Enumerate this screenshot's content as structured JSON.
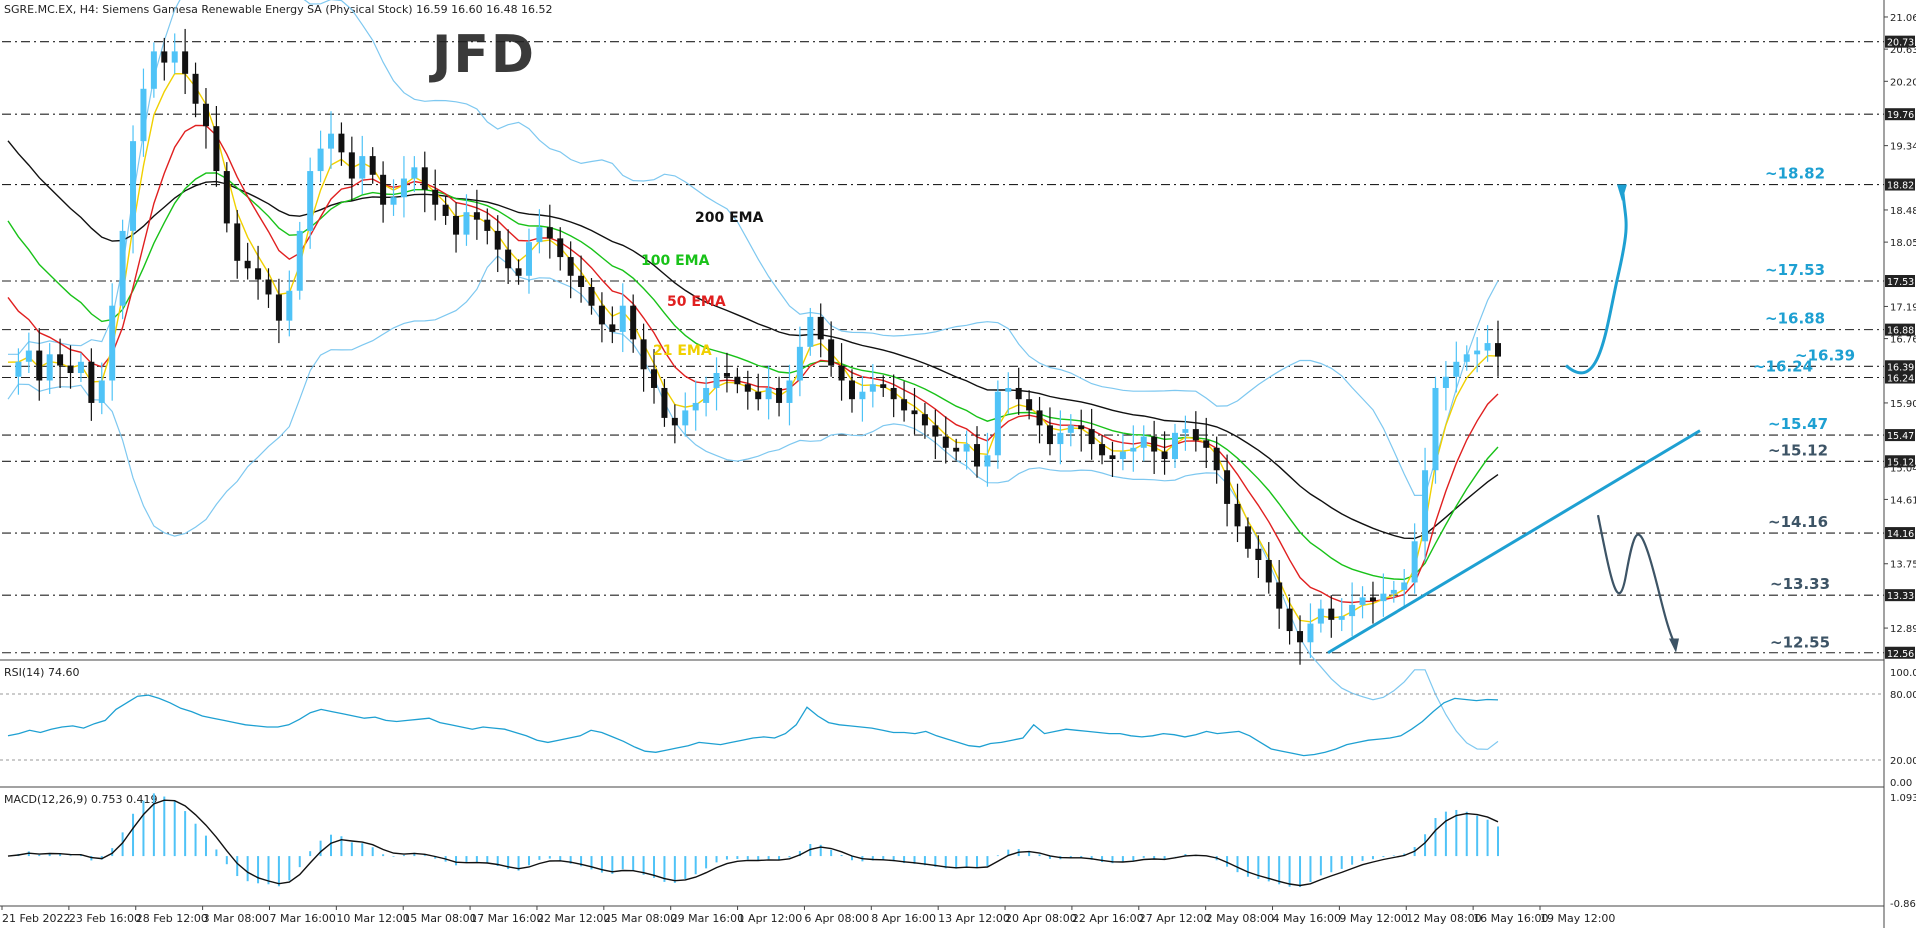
{
  "header": {
    "title": "SGRE.MC.EX, H4:  Siemens Gamesa Renewable Energy SA (Physical Stock)  16.59 16.60 16.48 16.52"
  },
  "logo": {
    "text": "JFD"
  },
  "chart_data": [
    {
      "type": "candlestick",
      "symbol": "SGRE.MC.EX",
      "timeframe": "H4",
      "instrument": "Siemens Gamesa Renewable Energy SA (Physical Stock)",
      "ohlc_last": {
        "open": 16.59,
        "high": 16.6,
        "low": 16.48,
        "close": 16.52
      },
      "y_axis_ticks": [
        "21.06",
        "20.73",
        "20.63",
        "20.20",
        "19.76",
        "19.34",
        "18.82",
        "18.48",
        "18.05",
        "17.53",
        "17.19",
        "16.88",
        "16.76",
        "16.39",
        "16.24",
        "15.90",
        "15.47",
        "15.12",
        "15.04",
        "14.61",
        "14.16",
        "13.75",
        "13.33",
        "12.89",
        "12.56"
      ],
      "ylim": [
        12.53,
        21.18
      ],
      "x_axis_ticks": [
        "21 Feb 2022",
        "23 Feb 16:00",
        "28 Feb 12:00",
        "3 Mar 08:00",
        "7 Mar 16:00",
        "10 Mar 12:00",
        "15 Mar 08:00",
        "17 Mar 16:00",
        "22 Mar 12:00",
        "25 Mar 08:00",
        "29 Mar 16:00",
        "1 Apr 12:00",
        "6 Apr 08:00",
        "8 Apr 16:00",
        "13 Apr 12:00",
        "20 Apr 08:00",
        "22 Apr 16:00",
        "27 Apr 12:00",
        "2 May 08:00",
        "4 May 16:00",
        "9 May 12:00",
        "12 May 08:00",
        "16 May 16:00",
        "19 May 12:00"
      ],
      "horizontal_levels": [
        {
          "value": 20.73,
          "label": "20.73",
          "style": "dash-dot"
        },
        {
          "value": 19.76,
          "label": "19.76",
          "style": "dash-dot"
        },
        {
          "value": 18.82,
          "label": "18.82",
          "style": "dash-dot"
        },
        {
          "value": 17.53,
          "label": "17.53",
          "style": "dash-dot"
        },
        {
          "value": 16.88,
          "label": "16.88",
          "style": "dash-dot"
        },
        {
          "value": 16.39,
          "label": "16.39",
          "style": "dash-dot"
        },
        {
          "value": 16.24,
          "label": "16.24",
          "style": "dash-dot"
        },
        {
          "value": 15.47,
          "label": "15.47",
          "style": "dash-dot"
        },
        {
          "value": 15.12,
          "label": "15.12",
          "style": "dash-dot"
        },
        {
          "value": 14.16,
          "label": "14.16",
          "style": "dash-dot"
        },
        {
          "value": 13.33,
          "label": "13.33",
          "style": "dash-dot"
        },
        {
          "value": 12.56,
          "label": "12.56",
          "style": "dash-dot"
        }
      ],
      "level_annotations": [
        {
          "text": "~18.82",
          "value": 18.82,
          "color": "#1ea0d2"
        },
        {
          "text": "~17.53",
          "value": 17.53,
          "color": "#1ea0d2"
        },
        {
          "text": "~16.88",
          "value": 16.88,
          "color": "#1ea0d2"
        },
        {
          "text": "~16.39",
          "value": 16.39,
          "color": "#1ea0d2"
        },
        {
          "text": "~16.24",
          "value": 16.24,
          "color": "#1ea0d2"
        },
        {
          "text": "~15.47",
          "value": 15.47,
          "color": "#1ea0d2"
        },
        {
          "text": "~15.12",
          "value": 15.12,
          "color": "#3d5466"
        },
        {
          "text": "~14.16",
          "value": 14.16,
          "color": "#3d5466"
        },
        {
          "text": "~13.33",
          "value": 13.33,
          "color": "#3d5466"
        },
        {
          "text": "~12.55",
          "value": 12.55,
          "color": "#3d5466"
        }
      ],
      "moving_averages": [
        {
          "name": "200 EMA",
          "color": "#111111"
        },
        {
          "name": "100 EMA",
          "color": "#19c219"
        },
        {
          "name": "50 EMA",
          "color": "#e02020"
        },
        {
          "name": "21 EMA",
          "color": "#f0d000"
        }
      ],
      "bollinger_color": "#7ec8f0",
      "bull_color": "#4fc3f7",
      "bear_color": "#111111",
      "close_series": [
        16.25,
        16.45,
        16.6,
        16.2,
        16.55,
        16.4,
        16.3,
        16.45,
        15.9,
        16.2,
        17.2,
        18.2,
        19.4,
        20.1,
        20.6,
        20.45,
        20.6,
        20.3,
        19.9,
        19.6,
        19.0,
        18.3,
        17.8,
        17.7,
        17.55,
        17.35,
        17.0,
        17.4,
        18.2,
        19.0,
        19.3,
        19.5,
        19.25,
        18.9,
        19.2,
        18.95,
        18.55,
        18.65,
        18.9,
        19.05,
        18.75,
        18.55,
        18.4,
        18.15,
        18.45,
        18.35,
        18.2,
        17.95,
        17.7,
        17.6,
        18.05,
        18.25,
        18.1,
        17.85,
        17.6,
        17.45,
        17.2,
        16.95,
        16.85,
        17.2,
        16.75,
        16.35,
        16.1,
        15.7,
        15.6,
        15.8,
        15.9,
        16.1,
        16.3,
        16.25,
        16.15,
        16.05,
        15.95,
        16.1,
        15.9,
        16.2,
        16.65,
        17.05,
        16.75,
        16.4,
        16.2,
        15.95,
        16.05,
        16.15,
        16.1,
        15.95,
        15.8,
        15.75,
        15.6,
        15.45,
        15.3,
        15.25,
        15.35,
        15.05,
        15.2,
        16.05,
        16.1,
        15.95,
        15.8,
        15.6,
        15.35,
        15.5,
        15.6,
        15.55,
        15.35,
        15.2,
        15.15,
        15.25,
        15.3,
        15.45,
        15.25,
        15.15,
        15.5,
        15.55,
        15.4,
        15.3,
        15.0,
        14.55,
        14.25,
        13.95,
        13.8,
        13.5,
        13.15,
        12.85,
        12.7,
        12.95,
        13.15,
        13.0,
        13.05,
        13.2,
        13.3,
        13.25,
        13.35,
        13.4,
        13.5,
        14.05,
        15.0,
        16.1,
        16.25,
        16.45,
        16.55,
        16.6,
        16.7,
        16.52
      ],
      "rsi": {
        "label": "RSI(14) 74.60",
        "ticks": [
          "100.00",
          "80.00",
          "20.00",
          "0.00"
        ],
        "levels": [
          80,
          20
        ],
        "values": [
          42,
          44,
          47,
          45,
          48,
          50,
          51,
          49,
          53,
          56,
          66,
          72,
          78,
          79,
          76,
          72,
          67,
          64,
          60,
          58,
          56,
          54,
          52,
          51,
          50,
          50,
          52,
          57,
          63,
          66,
          64,
          62,
          60,
          58,
          59,
          56,
          55,
          56,
          57,
          58,
          54,
          52,
          50,
          48,
          50,
          49,
          48,
          45,
          42,
          38,
          36,
          38,
          40,
          42,
          47,
          45,
          41,
          37,
          32,
          28,
          27,
          29,
          31,
          33,
          36,
          35,
          34,
          36,
          38,
          40,
          41,
          40,
          44,
          52,
          68,
          60,
          54,
          52,
          51,
          50,
          49,
          47,
          45,
          45,
          44,
          46,
          42,
          39,
          36,
          33,
          32,
          35,
          36,
          38,
          40,
          52,
          44,
          46,
          48,
          47,
          46,
          45,
          44,
          44,
          42,
          41,
          42,
          44,
          43,
          41,
          43,
          46,
          44,
          45,
          46,
          42,
          36,
          30,
          28,
          26,
          24,
          25,
          27,
          30,
          34,
          36,
          38,
          39,
          40,
          42,
          48,
          55,
          64,
          72,
          76,
          75,
          74,
          75,
          74.6
        ],
        "ylim": [
          0,
          100
        ]
      },
      "macd": {
        "label": "MACD(12,26,9) 0.753 0.419",
        "ticks": [
          "1.093",
          "-0.868"
        ],
        "ylim": [
          -0.868,
          1.093
        ]
      }
    }
  ]
}
